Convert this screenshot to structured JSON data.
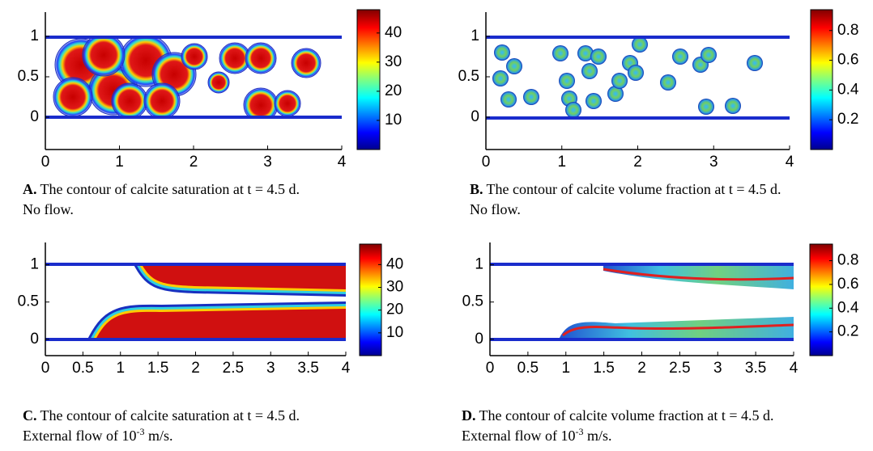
{
  "panels": [
    {
      "type": "contour",
      "label": "A.",
      "caption": "The contour of calcite saturation at t = 4.5 d.",
      "note": {
        "text": "No flow."
      },
      "xlim": [
        0,
        4
      ],
      "xticks": [
        0,
        1,
        2,
        3,
        4
      ],
      "ylim": [
        -0.4,
        1.3
      ],
      "yticks": [
        0,
        0.5,
        1
      ],
      "colorbar": {
        "lim": [
          0,
          48
        ],
        "ticks": [
          10,
          20,
          30,
          40
        ]
      }
    },
    {
      "type": "contour",
      "label": "B.",
      "caption": "The contour of calcite volume fraction at t = 4.5 d.",
      "note": {
        "text": "No flow."
      },
      "xlim": [
        0,
        4
      ],
      "xticks": [
        0,
        1,
        2,
        3,
        4
      ],
      "ylim": [
        -0.4,
        1.3
      ],
      "yticks": [
        0,
        0.5,
        1
      ],
      "colorbar": {
        "lim": [
          0,
          0.94
        ],
        "ticks": [
          0.2,
          0.4,
          0.6,
          0.8
        ]
      }
    },
    {
      "type": "contour",
      "label": "C.",
      "caption": "The contour of calcite saturation at t = 4.5 d.",
      "note": {
        "text": "External flow of ",
        "base": "10",
        "exponent": "-3",
        "unit": " m/s."
      },
      "xlim": [
        0,
        4
      ],
      "xticks": [
        0,
        0.5,
        1,
        1.5,
        2,
        2.5,
        3,
        3.5,
        4
      ],
      "ylim": [
        -0.22,
        1.3
      ],
      "yticks": [
        0,
        0.5,
        1
      ],
      "colorbar": {
        "lim": [
          0,
          49
        ],
        "ticks": [
          10,
          20,
          30,
          40
        ]
      }
    },
    {
      "type": "contour",
      "label": "D.",
      "caption": "The contour of calcite volume fraction at t = 4.5 d.",
      "note": {
        "text": "External flow of ",
        "base": "10",
        "exponent": "-3",
        "unit": " m/s."
      },
      "xlim": [
        0,
        4
      ],
      "xticks": [
        0,
        0.5,
        1,
        1.5,
        2,
        2.5,
        3,
        3.5,
        4
      ],
      "ylim": [
        -0.22,
        1.3
      ],
      "yticks": [
        0,
        0.5,
        1
      ],
      "colorbar": {
        "lim": [
          0,
          0.94
        ],
        "ticks": [
          0.2,
          0.4,
          0.6,
          0.8
        ]
      }
    }
  ]
}
